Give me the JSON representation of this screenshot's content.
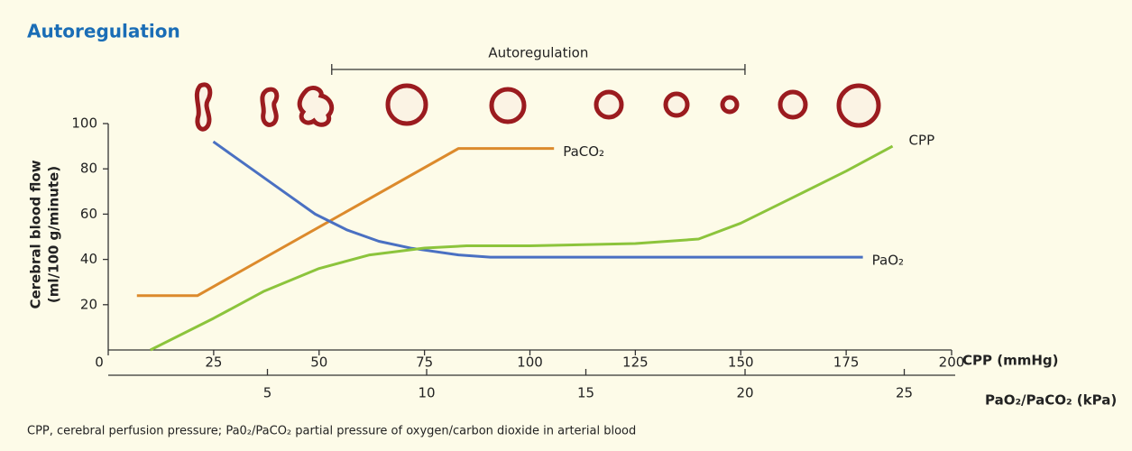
{
  "chart_data": {
    "type": "line",
    "title": "Autoregulation",
    "ylabel": [
      "Cerebral blood flow",
      "(ml/100 g/minute)"
    ],
    "xlabel": "CPP (mmHg)",
    "x2label": "PaO₂/PaCO₂ (kPa)",
    "footnote": "CPP, cerebral perfusion pressure; Pa0₂/PaCO₂ partial pressure of oxygen/carbon dioxide in arterial blood",
    "xlim": [
      0,
      200
    ],
    "xticks": [
      0,
      25,
      50,
      75,
      100,
      125,
      150,
      175,
      200
    ],
    "x2lim": [
      0,
      26.6
    ],
    "x2ticks": [
      5,
      10,
      15,
      20,
      25
    ],
    "ylim": [
      0,
      100
    ],
    "yticks": [
      20,
      40,
      60,
      80,
      100
    ],
    "annotation": {
      "text": "Autoregulation",
      "range": [
        53,
        151
      ]
    },
    "series": [
      {
        "name": "PaCO₂",
        "color": "#dc8a2c",
        "axis": "x2",
        "x": [
          0.9,
          2.8,
          11,
          14
        ],
        "values": [
          24,
          24,
          89,
          89
        ]
      },
      {
        "name": "PaO₂",
        "color": "#4a70c2",
        "axis": "x2",
        "x": [
          3.3,
          4.5,
          5.5,
          6.5,
          7.5,
          8.5,
          9.5,
          11,
          12,
          23.7
        ],
        "values": [
          92,
          80,
          70,
          60,
          53,
          48,
          45,
          42,
          41,
          41
        ]
      },
      {
        "name": "CPP",
        "color": "#8cc43c",
        "axis": "x",
        "x": [
          10,
          25,
          37,
          50,
          62,
          75,
          85,
          100,
          125,
          140,
          150,
          162,
          175,
          186
        ],
        "values": [
          0,
          14,
          26,
          36,
          42,
          45,
          46,
          46,
          47,
          49,
          56,
          67,
          79,
          90
        ]
      }
    ]
  }
}
